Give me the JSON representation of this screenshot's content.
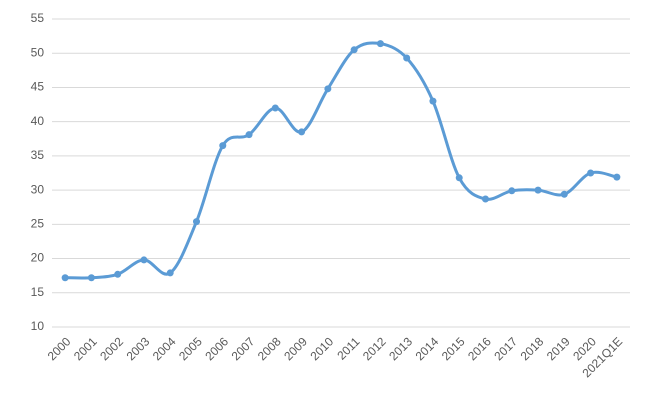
{
  "chart_data": {
    "type": "line",
    "categories": [
      "2000",
      "2001",
      "2002",
      "2003",
      "2004",
      "2005",
      "2006",
      "2007",
      "2008",
      "2009",
      "2010",
      "2011",
      "2012",
      "2013",
      "2014",
      "2015",
      "2016",
      "2017",
      "2018",
      "2019",
      "2020",
      "2021Q1E"
    ],
    "values": [
      17.2,
      17.2,
      17.7,
      19.8,
      17.9,
      25.4,
      36.5,
      38.1,
      42.0,
      38.5,
      44.8,
      50.5,
      51.4,
      49.3,
      43.0,
      31.8,
      28.7,
      29.9,
      30.0,
      29.4,
      32.5,
      31.9
    ],
    "color": "#5b9bd5",
    "ylim": [
      10,
      55
    ],
    "yticks": [
      10,
      15,
      20,
      25,
      30,
      35,
      40,
      45,
      50,
      55
    ],
    "grid": true,
    "smooth": true
  }
}
